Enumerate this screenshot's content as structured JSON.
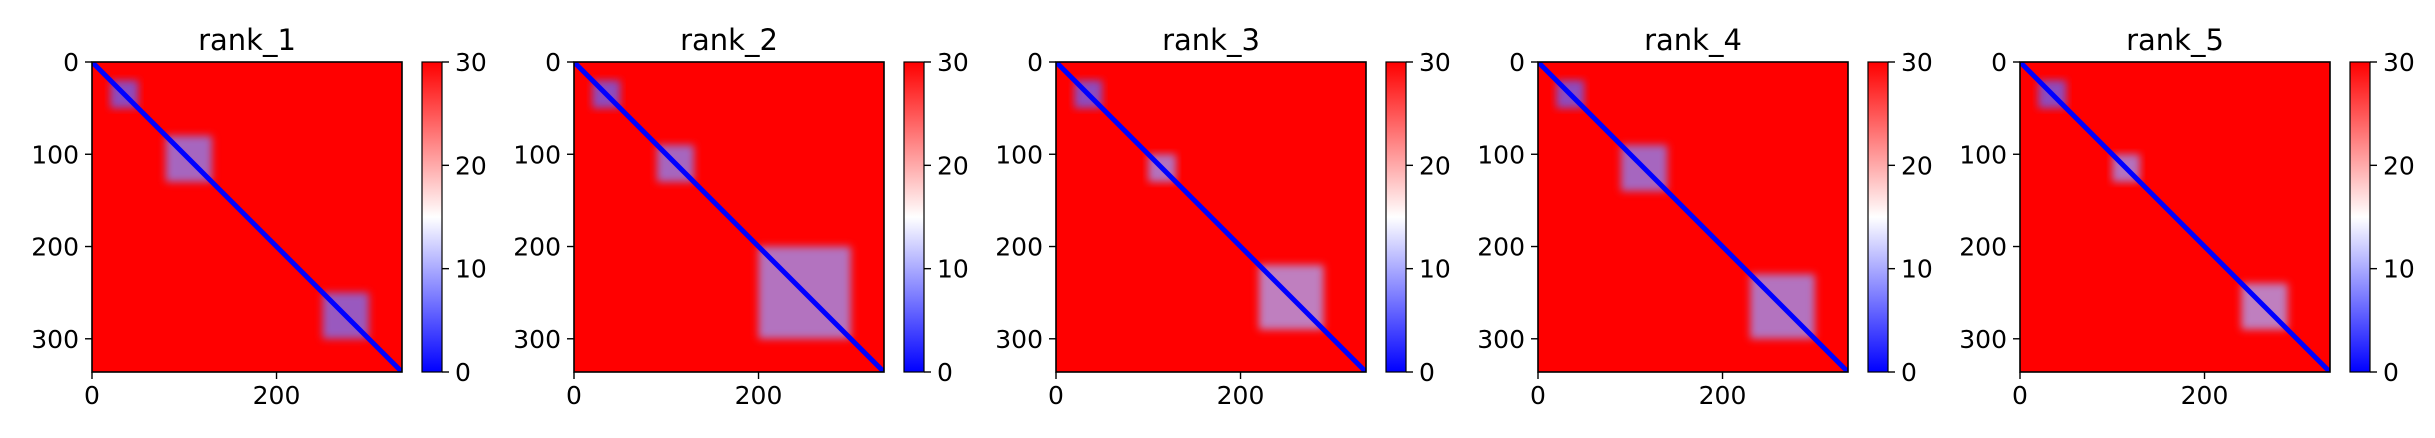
{
  "colors": {
    "low": "#0000ff",
    "mid": "#ffffff",
    "high": "#ff0000",
    "axis": "#000000",
    "background": "#ffffff"
  },
  "chart_data": [
    {
      "type": "heatmap",
      "title": "rank_1",
      "colormap": "bwr",
      "xlim": [
        0,
        336
      ],
      "ylim": [
        336,
        0
      ],
      "x_ticks": [
        0,
        200
      ],
      "y_ticks": [
        0,
        100,
        200,
        300
      ],
      "colorbar": {
        "range": [
          0,
          30
        ],
        "ticks": [
          0,
          10,
          20,
          30
        ]
      },
      "matrix_size": 336,
      "low_value_regions": [
        {
          "x": [
            20,
            50
          ],
          "y": [
            20,
            50
          ],
          "value": 6
        },
        {
          "x": [
            80,
            130
          ],
          "y": [
            80,
            130
          ],
          "value": 8
        },
        {
          "x": [
            250,
            300
          ],
          "y": [
            250,
            300
          ],
          "value": 7
        }
      ]
    },
    {
      "type": "heatmap",
      "title": "rank_2",
      "colormap": "bwr",
      "xlim": [
        0,
        336
      ],
      "ylim": [
        336,
        0
      ],
      "x_ticks": [
        0,
        200
      ],
      "y_ticks": [
        0,
        100,
        200,
        300
      ],
      "colorbar": {
        "range": [
          0,
          30
        ],
        "ticks": [
          0,
          10,
          20,
          30
        ]
      },
      "matrix_size": 336,
      "low_value_regions": [
        {
          "x": [
            20,
            50
          ],
          "y": [
            20,
            50
          ],
          "value": 6
        },
        {
          "x": [
            90,
            130
          ],
          "y": [
            90,
            130
          ],
          "value": 8
        },
        {
          "x": [
            200,
            300
          ],
          "y": [
            200,
            300
          ],
          "value": 9
        }
      ]
    },
    {
      "type": "heatmap",
      "title": "rank_3",
      "colormap": "bwr",
      "xlim": [
        0,
        336
      ],
      "ylim": [
        336,
        0
      ],
      "x_ticks": [
        0,
        200
      ],
      "y_ticks": [
        0,
        100,
        200,
        300
      ],
      "colorbar": {
        "range": [
          0,
          30
        ],
        "ticks": [
          0,
          10,
          20,
          30
        ]
      },
      "matrix_size": 336,
      "low_value_regions": [
        {
          "x": [
            20,
            50
          ],
          "y": [
            20,
            50
          ],
          "value": 6
        },
        {
          "x": [
            100,
            130
          ],
          "y": [
            100,
            130
          ],
          "value": 9
        },
        {
          "x": [
            220,
            290
          ],
          "y": [
            220,
            290
          ],
          "value": 10
        }
      ]
    },
    {
      "type": "heatmap",
      "title": "rank_4",
      "colormap": "bwr",
      "xlim": [
        0,
        336
      ],
      "ylim": [
        336,
        0
      ],
      "x_ticks": [
        0,
        200
      ],
      "y_ticks": [
        0,
        100,
        200,
        300
      ],
      "colorbar": {
        "range": [
          0,
          30
        ],
        "ticks": [
          0,
          10,
          20,
          30
        ]
      },
      "matrix_size": 336,
      "low_value_regions": [
        {
          "x": [
            20,
            50
          ],
          "y": [
            20,
            50
          ],
          "value": 6
        },
        {
          "x": [
            90,
            140
          ],
          "y": [
            90,
            140
          ],
          "value": 8
        },
        {
          "x": [
            230,
            300
          ],
          "y": [
            230,
            300
          ],
          "value": 9
        }
      ]
    },
    {
      "type": "heatmap",
      "title": "rank_5",
      "colormap": "bwr",
      "xlim": [
        0,
        336
      ],
      "ylim": [
        336,
        0
      ],
      "x_ticks": [
        0,
        200
      ],
      "y_ticks": [
        0,
        100,
        200,
        300
      ],
      "colorbar": {
        "range": [
          0,
          30
        ],
        "ticks": [
          0,
          10,
          20,
          30
        ]
      },
      "matrix_size": 336,
      "low_value_regions": [
        {
          "x": [
            20,
            50
          ],
          "y": [
            20,
            50
          ],
          "value": 6
        },
        {
          "x": [
            100,
            130
          ],
          "y": [
            100,
            130
          ],
          "value": 9
        },
        {
          "x": [
            240,
            290
          ],
          "y": [
            240,
            290
          ],
          "value": 10
        }
      ]
    }
  ]
}
